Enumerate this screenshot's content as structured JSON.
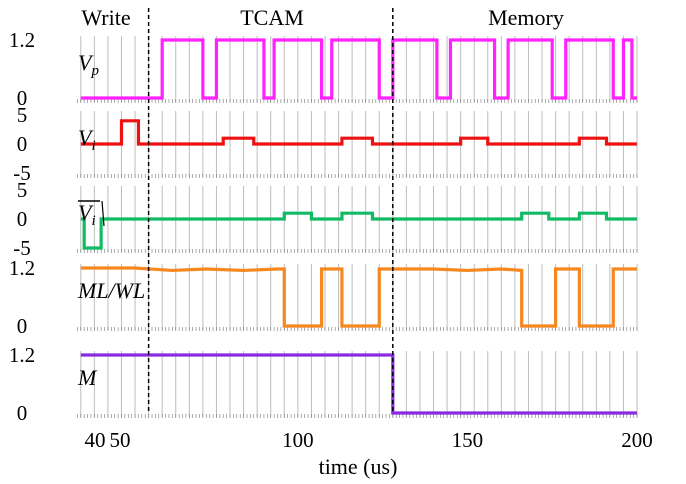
{
  "chart_data": {
    "type": "line",
    "xlabel": "time (us)",
    "xlim": [
      34,
      200
    ],
    "x_ticks": [
      40,
      50,
      100,
      150,
      200
    ],
    "regions": [
      {
        "label": "Write",
        "x_start": 34,
        "x_end": 56
      },
      {
        "label": "TCAM",
        "x_start": 56,
        "x_end": 128
      },
      {
        "label": "Memory",
        "x_start": 128,
        "x_end": 200
      }
    ],
    "dividers": [
      56,
      128
    ],
    "panels": [
      {
        "name": "V_p",
        "label_main": "V",
        "label_sub": "p",
        "overline": false,
        "color": "#ff22ff",
        "ylim": [
          0,
          1.2
        ],
        "y_ticks": [
          {
            "value": 1.2,
            "label": "1.2"
          },
          {
            "value": 0,
            "label": "0"
          }
        ],
        "points": [
          [
            36,
            0
          ],
          [
            60,
            0
          ],
          [
            60,
            1.2
          ],
          [
            72,
            1.2
          ],
          [
            72,
            0
          ],
          [
            76,
            0
          ],
          [
            76,
            1.2
          ],
          [
            90,
            1.2
          ],
          [
            90,
            0
          ],
          [
            93,
            0
          ],
          [
            93,
            1.2
          ],
          [
            107,
            1.2
          ],
          [
            107,
            0
          ],
          [
            110,
            0
          ],
          [
            110,
            1.2
          ],
          [
            124,
            1.2
          ],
          [
            124,
            0
          ],
          [
            128,
            0
          ],
          [
            128,
            1.2
          ],
          [
            141,
            1.2
          ],
          [
            141,
            0
          ],
          [
            145,
            0
          ],
          [
            145,
            1.2
          ],
          [
            158,
            1.2
          ],
          [
            158,
            0
          ],
          [
            162,
            0
          ],
          [
            162,
            1.2
          ],
          [
            175,
            1.2
          ],
          [
            175,
            0
          ],
          [
            179,
            0
          ],
          [
            179,
            1.2
          ],
          [
            193,
            1.2
          ],
          [
            193,
            0
          ],
          [
            196,
            0
          ],
          [
            196,
            1.2
          ],
          [
            198.5,
            1.2
          ],
          [
            198.5,
            0
          ],
          [
            200,
            0
          ]
        ]
      },
      {
        "name": "V_i",
        "label_main": "V",
        "label_sub": "i",
        "overline": false,
        "color": "#ee1111",
        "ylim": [
          -5,
          5
        ],
        "y_ticks": [
          {
            "value": 5,
            "label": "5"
          },
          {
            "value": 0,
            "label": "0"
          },
          {
            "value": -5,
            "label": "-5"
          }
        ],
        "points": [
          [
            36,
            0
          ],
          [
            48,
            0
          ],
          [
            48,
            4
          ],
          [
            53,
            4
          ],
          [
            53,
            0
          ],
          [
            78,
            0
          ],
          [
            78,
            1
          ],
          [
            87,
            1
          ],
          [
            87,
            0
          ],
          [
            113,
            0
          ],
          [
            113,
            1
          ],
          [
            122,
            1
          ],
          [
            122,
            0
          ],
          [
            148,
            0
          ],
          [
            148,
            1
          ],
          [
            156,
            1
          ],
          [
            156,
            0
          ],
          [
            183,
            0
          ],
          [
            183,
            1
          ],
          [
            191,
            1
          ],
          [
            191,
            0
          ],
          [
            200,
            0
          ]
        ]
      },
      {
        "name": "V_i_bar",
        "label_main": "V",
        "label_sub": "i",
        "overline": true,
        "color": "#11bb66",
        "ylim": [
          -5,
          5
        ],
        "y_ticks": [
          {
            "value": 5,
            "label": "5"
          },
          {
            "value": 0,
            "label": "0"
          },
          {
            "value": -5,
            "label": "-5"
          }
        ],
        "points": [
          [
            36,
            0
          ],
          [
            37,
            0
          ],
          [
            37,
            -5
          ],
          [
            42,
            -5
          ],
          [
            42,
            0
          ],
          [
            96,
            0
          ],
          [
            96,
            1
          ],
          [
            104,
            1
          ],
          [
            104,
            0
          ],
          [
            113,
            0
          ],
          [
            113,
            1
          ],
          [
            122,
            1
          ],
          [
            122,
            0
          ],
          [
            166,
            0
          ],
          [
            166,
            1
          ],
          [
            174,
            1
          ],
          [
            174,
            0
          ],
          [
            183,
            0
          ],
          [
            183,
            1
          ],
          [
            191,
            1
          ],
          [
            191,
            0
          ],
          [
            200,
            0
          ]
        ]
      },
      {
        "name": "ML_WL",
        "label_main": "ML/WL",
        "label_sub": "",
        "overline": false,
        "color": "#f5881f",
        "ylim": [
          0,
          1.2
        ],
        "y_ticks": [
          {
            "value": 1.2,
            "label": "1.2"
          },
          {
            "value": 0,
            "label": "0"
          }
        ],
        "points": [
          [
            36,
            1.2
          ],
          [
            52,
            1.2
          ],
          [
            63,
            1.15
          ],
          [
            73,
            1.18
          ],
          [
            84,
            1.15
          ],
          [
            94,
            1.18
          ],
          [
            96,
            1.18
          ],
          [
            96,
            0
          ],
          [
            107,
            0
          ],
          [
            107,
            1.18
          ],
          [
            113,
            1.18
          ],
          [
            113,
            0
          ],
          [
            124,
            0
          ],
          [
            124,
            1.18
          ],
          [
            140,
            1.18
          ],
          [
            150,
            1.15
          ],
          [
            160,
            1.18
          ],
          [
            166,
            1.15
          ],
          [
            166,
            0
          ],
          [
            176,
            0
          ],
          [
            176,
            1.18
          ],
          [
            183,
            1.18
          ],
          [
            183,
            0
          ],
          [
            193,
            0
          ],
          [
            193,
            1.18
          ],
          [
            200,
            1.18
          ]
        ]
      },
      {
        "name": "M",
        "label_main": "M",
        "label_sub": "",
        "overline": false,
        "color": "#8a2be2",
        "ylim": [
          0,
          1.2
        ],
        "y_ticks": [
          {
            "value": 1.2,
            "label": "1.2"
          },
          {
            "value": 0,
            "label": "0"
          }
        ],
        "points": [
          [
            36,
            1.2
          ],
          [
            128,
            1.2
          ],
          [
            128,
            0
          ],
          [
            200,
            0
          ]
        ]
      }
    ]
  }
}
